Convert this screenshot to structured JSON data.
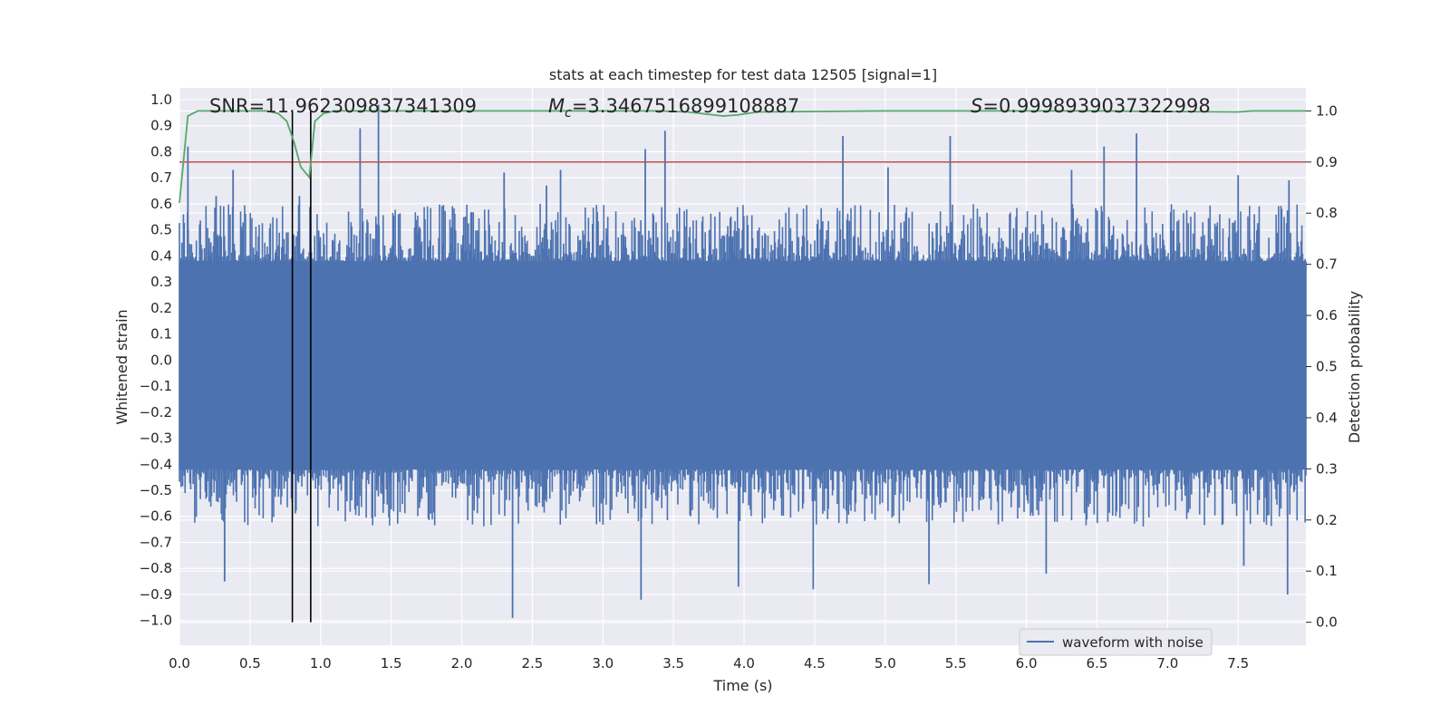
{
  "chart_data": {
    "type": "line",
    "title": "stats at each timestep for test data 12505 [signal=1]",
    "xlabel": "Time (s)",
    "ylabel_left": "Whitened strain",
    "ylabel_right": "Detection probability",
    "xlim": [
      0.0,
      7.98
    ],
    "ylim_left": [
      -1.095,
      1.045
    ],
    "ylim_right": [
      -0.045,
      1.045
    ],
    "x_ticks": [
      "0.0",
      "0.5",
      "1.0",
      "1.5",
      "2.0",
      "2.5",
      "3.0",
      "3.5",
      "4.0",
      "4.5",
      "5.0",
      "5.5",
      "6.0",
      "6.5",
      "7.0",
      "7.5"
    ],
    "y_left_ticks": [
      "1.0",
      "0.9",
      "0.8",
      "0.7",
      "0.6",
      "0.5",
      "0.4",
      "0.3",
      "0.2",
      "0.1",
      "0.0",
      "−0.1",
      "−0.2",
      "−0.3",
      "−0.4",
      "−0.5",
      "−0.6",
      "−0.7",
      "−0.8",
      "−0.9",
      "−1.0"
    ],
    "y_right_ticks": [
      "1.0",
      "0.9",
      "0.8",
      "0.7",
      "0.6",
      "0.5",
      "0.4",
      "0.3",
      "0.2",
      "0.1",
      "0.0"
    ],
    "annotations": {
      "snr": "SNR=11.962309837341309",
      "mc_symbol": "M",
      "mc_sub": "c",
      "mc_value": "=3.3467516899108887",
      "s_symbol": "S",
      "s_value": "=0.9998939037322998"
    },
    "legend": {
      "label": "waveform with noise",
      "position": "lower-right"
    },
    "threshold": 0.9,
    "vertical_markers": [
      0.8,
      0.93
    ],
    "series": [
      {
        "name": "waveform with noise",
        "axis": "left",
        "color": "#4c72b0",
        "envelope_typical": [
          -0.42,
          0.38
        ],
        "peaks": [
          [
            0.06,
            0.82
          ],
          [
            0.26,
            0.63
          ],
          [
            0.38,
            0.73
          ],
          [
            0.85,
            0.63
          ],
          [
            1.28,
            0.89
          ],
          [
            1.41,
            0.98
          ],
          [
            2.3,
            0.72
          ],
          [
            2.6,
            0.67
          ],
          [
            2.7,
            0.73
          ],
          [
            3.3,
            0.81
          ],
          [
            3.44,
            0.88
          ],
          [
            4.7,
            0.86
          ],
          [
            5.02,
            0.74
          ],
          [
            5.46,
            0.86
          ],
          [
            6.32,
            0.73
          ],
          [
            6.55,
            0.82
          ],
          [
            6.78,
            0.87
          ],
          [
            7.5,
            0.71
          ],
          [
            7.86,
            0.69
          ]
        ],
        "troughs": [
          [
            0.32,
            -0.85
          ],
          [
            2.36,
            -0.99
          ],
          [
            3.27,
            -0.92
          ],
          [
            3.96,
            -0.87
          ],
          [
            4.49,
            -0.88
          ],
          [
            5.31,
            -0.86
          ],
          [
            6.14,
            -0.82
          ],
          [
            7.54,
            -0.79
          ],
          [
            7.85,
            -0.9
          ]
        ]
      },
      {
        "name": "detection probability",
        "axis": "right",
        "color": "#55a868",
        "x": [
          0.0,
          0.06,
          0.13,
          0.3,
          0.5,
          0.62,
          0.7,
          0.76,
          0.81,
          0.86,
          0.92,
          0.96,
          1.02,
          1.1,
          1.3,
          1.6,
          2.0,
          2.6,
          3.0,
          3.4,
          3.6,
          3.85,
          3.95,
          4.1,
          4.5,
          5.0,
          5.5,
          6.0,
          6.5,
          7.0,
          7.5,
          7.6,
          7.98
        ],
        "y": [
          0.82,
          0.99,
          1.0,
          1.0,
          1.0,
          1.0,
          0.995,
          0.98,
          0.94,
          0.89,
          0.87,
          0.98,
          0.995,
          1.0,
          1.0,
          1.0,
          1.0,
          1.0,
          1.0,
          1.0,
          0.998,
          0.99,
          0.992,
          0.998,
          0.999,
          1.0,
          1.0,
          1.0,
          1.0,
          0.999,
          0.998,
          1.0,
          1.0
        ]
      }
    ]
  }
}
